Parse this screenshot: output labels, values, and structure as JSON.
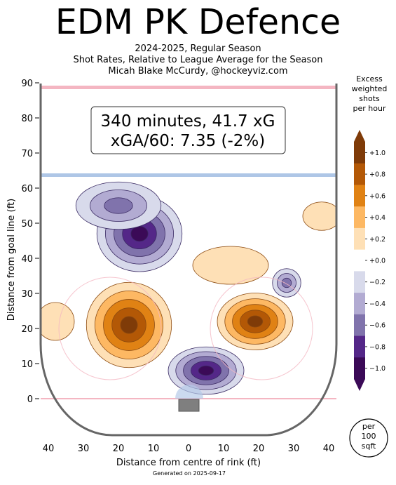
{
  "title": "EDM PK Defence",
  "subtitle_lines": [
    "2024-2025, Regular Season",
    "Shot Rates, Relative to League Average for the Season",
    "Micah Blake McCurdy, @hockeyviz.com"
  ],
  "footer": "Generated on 2025-09-17",
  "summary_box": {
    "line1": "340 minutes, 41.7 xG",
    "line2": "xGA/60: 7.35 (-2%)"
  },
  "colorbar": {
    "title_lines": [
      "Excess",
      "weighted",
      "shots",
      "per hour"
    ],
    "ticks": [
      {
        "value": 1.0,
        "label": "+1.0"
      },
      {
        "value": 0.8,
        "label": "+0.8"
      },
      {
        "value": 0.6,
        "label": "+0.6"
      },
      {
        "value": 0.4,
        "label": "+0.4"
      },
      {
        "value": 0.2,
        "label": "+0.2"
      },
      {
        "value": 0.0,
        "label": "+0.0"
      },
      {
        "value": -0.2,
        "label": "−0.2"
      },
      {
        "value": -0.4,
        "label": "−0.4"
      },
      {
        "value": -0.6,
        "label": "−0.6"
      },
      {
        "value": -0.8,
        "label": "−0.8"
      },
      {
        "value": -1.0,
        "label": "−1.0"
      }
    ],
    "colors": [
      "#3b0a57",
      "#542788",
      "#8073ac",
      "#b2abd2",
      "#d8daeb",
      "#ffffff",
      "#fee0b6",
      "#fdb863",
      "#e08214",
      "#b35806",
      "#7f3b08"
    ],
    "unit_badge_lines": [
      "per",
      "100",
      "sqft"
    ]
  },
  "chart_data": {
    "type": "heatmap",
    "xlabel": "Distance from centre of rink (ft)",
    "ylabel": "Distance from goal line (ft)",
    "xlim": [
      -42.5,
      42.5
    ],
    "ylim": [
      -11,
      90
    ],
    "x_ticks": [
      {
        "value": -40,
        "label": "40"
      },
      {
        "value": -30,
        "label": "30"
      },
      {
        "value": -20,
        "label": "20"
      },
      {
        "value": -10,
        "label": "10"
      },
      {
        "value": 0,
        "label": "0"
      },
      {
        "value": 10,
        "label": "10"
      },
      {
        "value": 20,
        "label": "20"
      },
      {
        "value": 30,
        "label": "30"
      },
      {
        "value": 40,
        "label": "40"
      }
    ],
    "y_ticks": [
      0,
      10,
      20,
      30,
      40,
      50,
      60,
      70,
      80,
      90
    ],
    "regions": [
      {
        "name": "high-slot-left",
        "cx": -14,
        "cy": 47,
        "sx": 9,
        "sy": 8,
        "value": -1.0
      },
      {
        "name": "point-left",
        "cx": -20,
        "cy": 55,
        "sx": 9,
        "sy": 5,
        "value": -0.5
      },
      {
        "name": "crease-front",
        "cx": 5,
        "cy": 8,
        "sx": 8,
        "sy": 5,
        "value": -1.0
      },
      {
        "name": "slot-right-small",
        "cx": 28,
        "cy": 33,
        "sx": 3,
        "sy": 3,
        "value": -0.6
      },
      {
        "name": "left-circle",
        "cx": -17,
        "cy": 21,
        "sx": 9,
        "sy": 9,
        "value": 1.0
      },
      {
        "name": "right-circle",
        "cx": 19,
        "cy": 22,
        "sx": 8,
        "sy": 6,
        "value": 0.9
      },
      {
        "name": "right-point",
        "cx": 38,
        "cy": 52,
        "sx": 4,
        "sy": 3,
        "value": 0.2
      },
      {
        "name": "left-wall",
        "cx": -38,
        "cy": 22,
        "sx": 4,
        "sy": 4,
        "value": 0.25
      },
      {
        "name": "mid-ice-high",
        "cx": 12,
        "cy": 38,
        "sx": 8,
        "sy": 4,
        "value": 0.2
      }
    ]
  }
}
